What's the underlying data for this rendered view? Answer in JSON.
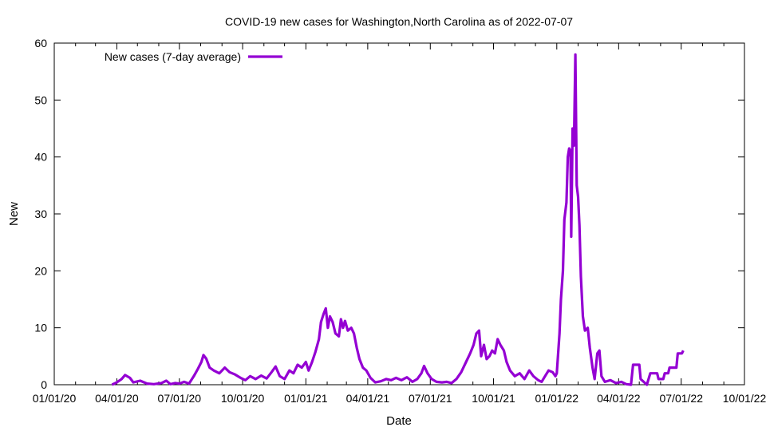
{
  "chart_data": {
    "type": "line",
    "title": "COVID-19 new cases for Washington,North Carolina as of 2022-07-07",
    "xlabel": "Date",
    "ylabel": "New",
    "xlim": [
      "2020-01-01",
      "2022-10-01"
    ],
    "ylim": [
      0,
      60
    ],
    "x_ticks": [
      "01/01/20",
      "04/01/20",
      "07/01/20",
      "10/01/20",
      "01/01/21",
      "04/01/21",
      "07/01/21",
      "10/01/21",
      "01/01/22",
      "04/01/22",
      "07/01/22",
      "10/01/22"
    ],
    "y_ticks": [
      "0",
      "10",
      "20",
      "30",
      "40",
      "50",
      "60"
    ],
    "grid": false,
    "legend_position": "top-left",
    "line_color": "#9400d3",
    "series": [
      {
        "name": "New cases (7-day average)",
        "points": [
          [
            "2020-03-25",
            0.0
          ],
          [
            "2020-04-01",
            0.4
          ],
          [
            "2020-04-08",
            1.0
          ],
          [
            "2020-04-13",
            1.7
          ],
          [
            "2020-04-20",
            1.2
          ],
          [
            "2020-04-25",
            0.4
          ],
          [
            "2020-05-05",
            0.7
          ],
          [
            "2020-05-15",
            0.2
          ],
          [
            "2020-05-25",
            0.1
          ],
          [
            "2020-06-05",
            0.3
          ],
          [
            "2020-06-12",
            0.7
          ],
          [
            "2020-06-18",
            0.1
          ],
          [
            "2020-06-25",
            0.3
          ],
          [
            "2020-07-01",
            0.2
          ],
          [
            "2020-07-08",
            0.5
          ],
          [
            "2020-07-15",
            0.2
          ],
          [
            "2020-07-22",
            1.5
          ],
          [
            "2020-07-28",
            2.8
          ],
          [
            "2020-08-02",
            4.0
          ],
          [
            "2020-08-05",
            5.2
          ],
          [
            "2020-08-09",
            4.6
          ],
          [
            "2020-08-14",
            3.0
          ],
          [
            "2020-08-20",
            2.5
          ],
          [
            "2020-08-28",
            2.0
          ],
          [
            "2020-09-05",
            3.0
          ],
          [
            "2020-09-12",
            2.2
          ],
          [
            "2020-09-20",
            1.8
          ],
          [
            "2020-09-28",
            1.2
          ],
          [
            "2020-10-05",
            0.8
          ],
          [
            "2020-10-12",
            1.5
          ],
          [
            "2020-10-20",
            1.0
          ],
          [
            "2020-10-28",
            1.6
          ],
          [
            "2020-11-05",
            1.1
          ],
          [
            "2020-11-12",
            2.2
          ],
          [
            "2020-11-18",
            3.2
          ],
          [
            "2020-11-24",
            1.5
          ],
          [
            "2020-12-01",
            1.0
          ],
          [
            "2020-12-08",
            2.5
          ],
          [
            "2020-12-14",
            2.0
          ],
          [
            "2020-12-20",
            3.5
          ],
          [
            "2020-12-26",
            3.0
          ],
          [
            "2021-01-01",
            4.0
          ],
          [
            "2021-01-05",
            2.5
          ],
          [
            "2021-01-10",
            4.0
          ],
          [
            "2021-01-15",
            5.8
          ],
          [
            "2021-01-20",
            8.0
          ],
          [
            "2021-01-23",
            11.0
          ],
          [
            "2021-01-27",
            12.5
          ],
          [
            "2021-01-30",
            13.4
          ],
          [
            "2021-02-02",
            10.0
          ],
          [
            "2021-02-05",
            12.0
          ],
          [
            "2021-02-09",
            11.0
          ],
          [
            "2021-02-13",
            9.0
          ],
          [
            "2021-02-18",
            8.5
          ],
          [
            "2021-02-21",
            11.5
          ],
          [
            "2021-02-24",
            10.0
          ],
          [
            "2021-02-27",
            11.2
          ],
          [
            "2021-03-03",
            9.5
          ],
          [
            "2021-03-08",
            10.0
          ],
          [
            "2021-03-12",
            9.0
          ],
          [
            "2021-03-16",
            6.5
          ],
          [
            "2021-03-20",
            4.5
          ],
          [
            "2021-03-25",
            3.0
          ],
          [
            "2021-03-30",
            2.5
          ],
          [
            "2021-04-05",
            1.2
          ],
          [
            "2021-04-12",
            0.4
          ],
          [
            "2021-04-20",
            0.6
          ],
          [
            "2021-04-28",
            1.0
          ],
          [
            "2021-05-05",
            0.8
          ],
          [
            "2021-05-12",
            1.2
          ],
          [
            "2021-05-20",
            0.8
          ],
          [
            "2021-05-28",
            1.3
          ],
          [
            "2021-06-05",
            0.5
          ],
          [
            "2021-06-12",
            1.0
          ],
          [
            "2021-06-18",
            2.0
          ],
          [
            "2021-06-22",
            3.3
          ],
          [
            "2021-06-27",
            2.0
          ],
          [
            "2021-07-03",
            1.0
          ],
          [
            "2021-07-10",
            0.5
          ],
          [
            "2021-07-18",
            0.4
          ],
          [
            "2021-07-25",
            0.5
          ],
          [
            "2021-08-01",
            0.3
          ],
          [
            "2021-08-08",
            1.0
          ],
          [
            "2021-08-15",
            2.2
          ],
          [
            "2021-08-22",
            4.0
          ],
          [
            "2021-08-28",
            5.5
          ],
          [
            "2021-09-02",
            7.0
          ],
          [
            "2021-09-06",
            9.0
          ],
          [
            "2021-09-10",
            9.5
          ],
          [
            "2021-09-13",
            5.0
          ],
          [
            "2021-09-17",
            7.0
          ],
          [
            "2021-09-21",
            4.5
          ],
          [
            "2021-09-25",
            5.0
          ],
          [
            "2021-09-29",
            6.0
          ],
          [
            "2021-10-03",
            5.5
          ],
          [
            "2021-10-07",
            8.0
          ],
          [
            "2021-10-11",
            7.0
          ],
          [
            "2021-10-16",
            6.0
          ],
          [
            "2021-10-20",
            4.0
          ],
          [
            "2021-10-25",
            2.5
          ],
          [
            "2021-11-01",
            1.5
          ],
          [
            "2021-11-08",
            2.0
          ],
          [
            "2021-11-15",
            1.0
          ],
          [
            "2021-11-22",
            2.5
          ],
          [
            "2021-11-28",
            1.5
          ],
          [
            "2021-12-05",
            0.8
          ],
          [
            "2021-12-10",
            0.5
          ],
          [
            "2021-12-15",
            1.5
          ],
          [
            "2021-12-20",
            2.5
          ],
          [
            "2021-12-26",
            2.2
          ],
          [
            "2021-12-30",
            1.5
          ],
          [
            "2022-01-01",
            2.0
          ],
          [
            "2022-01-03",
            5.5
          ],
          [
            "2022-01-05",
            9.0
          ],
          [
            "2022-01-07",
            15.0
          ],
          [
            "2022-01-10",
            20.0
          ],
          [
            "2022-01-12",
            29.0
          ],
          [
            "2022-01-15",
            32.0
          ],
          [
            "2022-01-17",
            40.0
          ],
          [
            "2022-01-19",
            41.5
          ],
          [
            "2022-01-21",
            41.0
          ],
          [
            "2022-01-22",
            26.0
          ],
          [
            "2022-01-24",
            45.0
          ],
          [
            "2022-01-26",
            42.0
          ],
          [
            "2022-01-28",
            58.0
          ],
          [
            "2022-01-30",
            35.0
          ],
          [
            "2022-02-01",
            33.0
          ],
          [
            "2022-02-03",
            28.0
          ],
          [
            "2022-02-05",
            19.0
          ],
          [
            "2022-02-08",
            12.0
          ],
          [
            "2022-02-11",
            9.5
          ],
          [
            "2022-02-15",
            10.0
          ],
          [
            "2022-02-18",
            6.5
          ],
          [
            "2022-02-22",
            3.0
          ],
          [
            "2022-02-25",
            1.0
          ],
          [
            "2022-03-01",
            5.5
          ],
          [
            "2022-03-04",
            6.0
          ],
          [
            "2022-03-07",
            1.5
          ],
          [
            "2022-03-12",
            0.5
          ],
          [
            "2022-03-20",
            0.8
          ],
          [
            "2022-03-28",
            0.3
          ],
          [
            "2022-04-05",
            0.5
          ],
          [
            "2022-04-12",
            0.1
          ],
          [
            "2022-04-19",
            0.0
          ],
          [
            "2022-04-22",
            3.5
          ],
          [
            "2022-05-01",
            3.5
          ],
          [
            "2022-05-03",
            1.0
          ],
          [
            "2022-05-12",
            0.0
          ],
          [
            "2022-05-17",
            2.0
          ],
          [
            "2022-05-27",
            2.0
          ],
          [
            "2022-05-29",
            1.0
          ],
          [
            "2022-06-05",
            1.0
          ],
          [
            "2022-06-07",
            2.0
          ],
          [
            "2022-06-12",
            2.0
          ],
          [
            "2022-06-14",
            3.0
          ],
          [
            "2022-06-24",
            3.0
          ],
          [
            "2022-06-26",
            5.5
          ],
          [
            "2022-07-02",
            5.5
          ],
          [
            "2022-07-04",
            6.0
          ]
        ]
      }
    ]
  }
}
